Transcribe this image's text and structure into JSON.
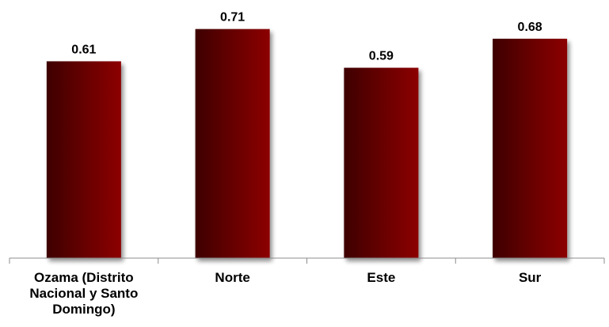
{
  "chart_data": {
    "type": "bar",
    "categories": [
      [
        "Ozama  (Distrito",
        "Nacional y Santo",
        "Domingo)"
      ],
      [
        "Norte"
      ],
      [
        "Este"
      ],
      [
        "Sur"
      ]
    ],
    "values": [
      0.61,
      0.71,
      0.59,
      0.68
    ],
    "value_labels": [
      "0.61",
      "0.71",
      "0.59",
      "0.68"
    ],
    "title": "",
    "xlabel": "",
    "ylabel": "",
    "ylim": [
      0,
      0.8
    ],
    "grid": false,
    "legend": "none",
    "colors": {
      "bar_dark": "#3e0000",
      "bar_mid": "#6a0000",
      "bar_light": "#8c0505",
      "axis": "#8c8c8c"
    }
  }
}
